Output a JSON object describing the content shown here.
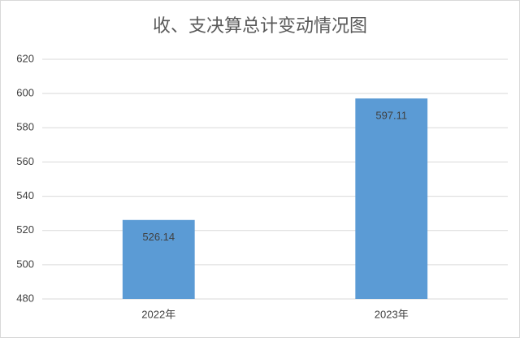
{
  "chart_data": {
    "type": "bar",
    "title": "收、支决算总计变动情况图",
    "categories": [
      "2022年",
      "2023年"
    ],
    "values": [
      526.14,
      597.11
    ],
    "color": "#5b9bd5",
    "ylim": [
      480,
      620
    ],
    "yticks": [
      480,
      500,
      520,
      540,
      560,
      580,
      600,
      620
    ],
    "grid": true
  }
}
